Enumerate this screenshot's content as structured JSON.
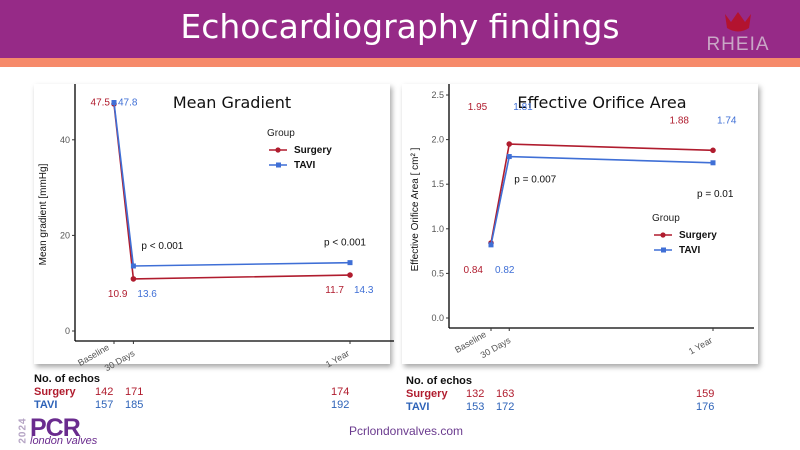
{
  "header": {
    "title": "Echocardiography findings",
    "logo_text": "RHEIA",
    "colors": {
      "banner": "#962a87",
      "stripe": "#f68a6a",
      "logo_crown": "#b3132f"
    }
  },
  "colors": {
    "Surgery": "#b01c2e",
    "TAVI": "#3f6fd6"
  },
  "chart_data": [
    {
      "type": "line",
      "title": "Mean Gradient",
      "xlabel": "",
      "ylabel": "Mean gradient [mmHg]",
      "categories": [
        "Baseline",
        "30 Days",
        "1 Year"
      ],
      "x_positions_days": [
        0,
        30,
        365
      ],
      "ylim": [
        0,
        50
      ],
      "yticks": [
        "0",
        "20",
        "40"
      ],
      "ytick_values": [
        0,
        20,
        40
      ],
      "grid": false,
      "legend": {
        "title": "Group",
        "placement": "top-right",
        "entries": [
          "Surgery",
          "TAVI"
        ]
      },
      "series": [
        {
          "name": "Surgery",
          "values": [
            47.5,
            10.9,
            11.7
          ],
          "labels": [
            "47.5",
            "10.9",
            "11.7"
          ]
        },
        {
          "name": "TAVI",
          "values": [
            47.8,
            13.6,
            14.3
          ],
          "labels": [
            "47.8",
            "13.6",
            "14.3"
          ]
        }
      ],
      "annotations": [
        {
          "category": "30 Days",
          "text": "p < 0.001"
        },
        {
          "category": "1 Year",
          "text": "p < 0.001"
        }
      ]
    },
    {
      "type": "line",
      "title": "Effective Orifice Area",
      "xlabel": "",
      "ylabel": "Effective Orifice Area [ cm² ]",
      "categories": [
        "Baseline",
        "30 Days",
        "1 Year"
      ],
      "x_positions_days": [
        0,
        30,
        365
      ],
      "ylim": [
        0,
        2.5
      ],
      "yticks": [
        "0.0",
        "0.5",
        "1.0",
        "1.5",
        "2.0",
        "2.5"
      ],
      "ytick_values": [
        0,
        0.5,
        1.0,
        1.5,
        2.0,
        2.5
      ],
      "grid": false,
      "legend": {
        "title": "Group",
        "placement": "center-right",
        "entries": [
          "Surgery",
          "TAVI"
        ]
      },
      "series": [
        {
          "name": "Surgery",
          "values": [
            0.84,
            1.95,
            1.88
          ],
          "labels": [
            "0.84",
            "1.95",
            "1.88"
          ]
        },
        {
          "name": "TAVI",
          "values": [
            0.82,
            1.81,
            1.74
          ],
          "labels": [
            "0.82",
            "1.81",
            "1.74"
          ]
        }
      ],
      "annotations": [
        {
          "category": "30 Days",
          "text": "p = 0.007"
        },
        {
          "category": "1 Year",
          "text": "p = 0.01"
        }
      ]
    }
  ],
  "echos": [
    {
      "title": "No. of echos",
      "rows": [
        {
          "label": "Surgery",
          "values": [
            "142",
            "171",
            "174"
          ]
        },
        {
          "label": "TAVI",
          "values": [
            "157",
            "185",
            "192"
          ]
        }
      ]
    },
    {
      "title": "No. of echos",
      "rows": [
        {
          "label": "Surgery",
          "values": [
            "132",
            "163",
            "159"
          ]
        },
        {
          "label": "TAVI",
          "values": [
            "153",
            "172",
            "176"
          ]
        }
      ]
    }
  ],
  "footer": {
    "year": "2024",
    "logo": "PCR",
    "logo_sub": "london valves",
    "url": "Pcrlondonvalves.com"
  }
}
